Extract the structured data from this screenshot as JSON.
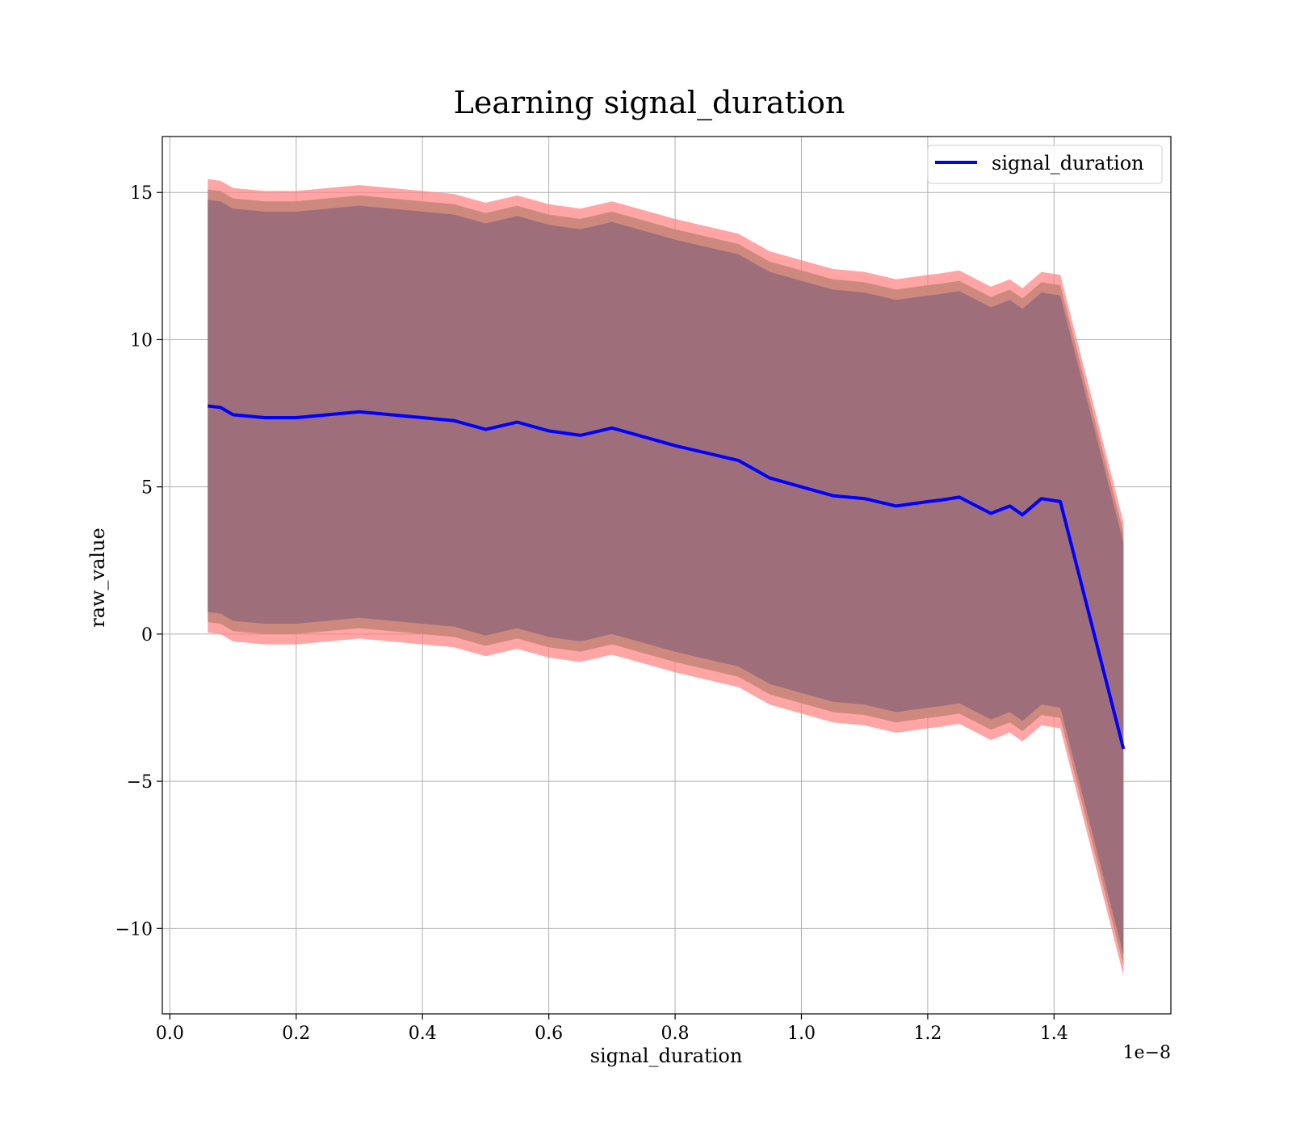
{
  "chart_data": {
    "type": "line",
    "title": "Learning signal_duration",
    "xlabel": "signal_duration",
    "ylabel": "raw_value",
    "x_offset_label": "1e−8",
    "xlim": [
      -0.012,
      1.585
    ],
    "ylim": [
      -12.9,
      16.9
    ],
    "x_ticks": [
      0.0,
      0.2,
      0.4,
      0.6,
      0.8,
      1.0,
      1.2,
      1.4
    ],
    "x_tick_labels": [
      "0.0",
      "0.2",
      "0.4",
      "0.6",
      "0.8",
      "1.0",
      "1.2",
      "1.4"
    ],
    "y_ticks": [
      -10,
      -5,
      0,
      5,
      10,
      15
    ],
    "y_tick_labels": [
      "−10",
      "−5",
      "0",
      "5",
      "10",
      "15"
    ],
    "grid": true,
    "legend_position": "top-right",
    "colors": {
      "line": "#0000ff",
      "band_outer": "#ff7f7f",
      "band_middle": "#c9867b",
      "band_inner": "#9e6f7b"
    },
    "series": [
      {
        "name": "signal_duration",
        "x": [
          0.06,
          0.08,
          0.1,
          0.15,
          0.2,
          0.25,
          0.3,
          0.35,
          0.4,
          0.45,
          0.5,
          0.55,
          0.6,
          0.65,
          0.7,
          0.75,
          0.8,
          0.85,
          0.9,
          0.95,
          1.0,
          1.05,
          1.1,
          1.15,
          1.2,
          1.22,
          1.25,
          1.3,
          1.33,
          1.35,
          1.38,
          1.41,
          1.51
        ],
        "mean": [
          7.75,
          7.7,
          7.45,
          7.35,
          7.35,
          7.45,
          7.55,
          7.45,
          7.35,
          7.25,
          6.95,
          7.2,
          6.9,
          6.75,
          7.0,
          6.7,
          6.4,
          6.15,
          5.9,
          5.3,
          5.0,
          4.7,
          4.6,
          4.35,
          4.5,
          4.55,
          4.65,
          4.1,
          4.35,
          4.05,
          4.6,
          4.5,
          -3.9
        ],
        "band_half_width_inner": 7.0,
        "band_half_width_middle": 7.35,
        "band_half_width_outer": 7.7
      }
    ]
  }
}
